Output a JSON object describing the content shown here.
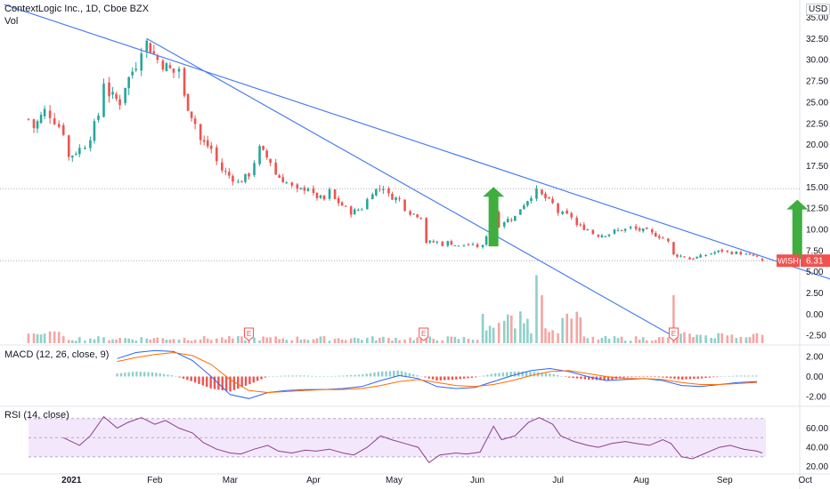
{
  "header": {
    "title": "ContextLogic Inc., 1D, Cboe BZX",
    "volume_label": "Vol",
    "currency": "USD"
  },
  "price_tag": {
    "symbol": "WISH",
    "value": "6.31",
    "color": "#ef5350"
  },
  "earnings_marker": "E",
  "colors": {
    "up": "#26a69a",
    "down": "#ef5350",
    "up_vol": "#8fd0c9",
    "down_vol": "#f4a6a4",
    "trendline": "#4a7ff0",
    "arrow": "#3fae3f",
    "macd": "#2962ff",
    "signal": "#ff6d00",
    "rsi": "#8e3e8e",
    "rsi_band": "#f3e8fb"
  },
  "panes": {
    "macd_label": "MACD (12, 26, close, 9)",
    "rsi_label": "RSI (14, close)"
  },
  "chart_data": [
    {
      "type": "candlestick",
      "title": "ContextLogic Inc., 1D, Cboe BZX",
      "ylabel": "USD",
      "ylim": [
        -3.0,
        36.0
      ],
      "yticks": [
        "35.00",
        "32.50",
        "30.00",
        "27.50",
        "25.00",
        "22.50",
        "20.00",
        "17.50",
        "15.00",
        "12.50",
        "10.00",
        "7.50",
        "5.00",
        "2.50",
        "0.00",
        "-2.50"
      ],
      "x_tick_labels": [
        "2021",
        "Feb",
        "Mar",
        "Apr",
        "May",
        "Jun",
        "Jul",
        "Aug",
        "Sep",
        "Oct"
      ],
      "last_price": 6.31,
      "close_path": [
        [
          "2020-12-16",
          23.0
        ],
        [
          "2020-12-18",
          22.0
        ],
        [
          "2020-12-22",
          24.0
        ],
        [
          "2020-12-24",
          23.5
        ],
        [
          "2020-12-29",
          21.5
        ],
        [
          "2020-12-31",
          18.5
        ],
        [
          "2021-01-04",
          19.5
        ],
        [
          "2021-01-06",
          20.0
        ],
        [
          "2021-01-08",
          21.0
        ],
        [
          "2021-01-11",
          23.5
        ],
        [
          "2021-01-13",
          27.5
        ],
        [
          "2021-01-15",
          26.0
        ],
        [
          "2021-01-19",
          25.0
        ],
        [
          "2021-01-21",
          27.0
        ],
        [
          "2021-01-25",
          29.5
        ],
        [
          "2021-01-27",
          31.5
        ],
        [
          "2021-01-29",
          32.0
        ],
        [
          "2021-02-02",
          30.0
        ],
        [
          "2021-02-04",
          29.5
        ],
        [
          "2021-02-08",
          28.5
        ],
        [
          "2021-02-10",
          29.0
        ],
        [
          "2021-02-12",
          25.5
        ],
        [
          "2021-02-16",
          22.5
        ],
        [
          "2021-02-18",
          20.5
        ],
        [
          "2021-02-22",
          19.5
        ],
        [
          "2021-02-24",
          18.0
        ],
        [
          "2021-02-26",
          17.0
        ],
        [
          "2021-03-02",
          16.0
        ],
        [
          "2021-03-04",
          15.5
        ],
        [
          "2021-03-08",
          16.5
        ],
        [
          "2021-03-10",
          18.0
        ],
        [
          "2021-03-12",
          19.5
        ],
        [
          "2021-03-16",
          18.0
        ],
        [
          "2021-03-18",
          16.5
        ],
        [
          "2021-03-22",
          15.5
        ],
        [
          "2021-03-24",
          15.0
        ],
        [
          "2021-03-26",
          14.5
        ],
        [
          "2021-03-30",
          15.0
        ],
        [
          "2021-04-01",
          14.0
        ],
        [
          "2021-04-05",
          13.5
        ],
        [
          "2021-04-07",
          14.5
        ],
        [
          "2021-04-09",
          13.5
        ],
        [
          "2021-04-13",
          12.5
        ],
        [
          "2021-04-15",
          12.0
        ],
        [
          "2021-04-19",
          12.5
        ],
        [
          "2021-04-21",
          13.5
        ],
        [
          "2021-04-23",
          14.5
        ],
        [
          "2021-04-27",
          15.0
        ],
        [
          "2021-04-29",
          14.0
        ],
        [
          "2021-05-03",
          13.5
        ],
        [
          "2021-05-05",
          12.5
        ],
        [
          "2021-05-07",
          12.0
        ],
        [
          "2021-05-11",
          11.5
        ],
        [
          "2021-05-13",
          8.5
        ],
        [
          "2021-05-17",
          8.5
        ],
        [
          "2021-05-19",
          8.2
        ],
        [
          "2021-05-21",
          8.5
        ],
        [
          "2021-05-25",
          8.0
        ],
        [
          "2021-05-27",
          8.2
        ],
        [
          "2021-06-01",
          8.0
        ],
        [
          "2021-06-03",
          8.0
        ],
        [
          "2021-06-07",
          12.0
        ],
        [
          "2021-06-09",
          10.5
        ],
        [
          "2021-06-11",
          11.0
        ],
        [
          "2021-06-15",
          11.5
        ],
        [
          "2021-06-17",
          12.5
        ],
        [
          "2021-06-21",
          14.0
        ],
        [
          "2021-06-23",
          14.5
        ],
        [
          "2021-06-25",
          14.0
        ],
        [
          "2021-06-29",
          13.0
        ],
        [
          "2021-07-01",
          12.0
        ],
        [
          "2021-07-06",
          11.5
        ],
        [
          "2021-07-08",
          10.5
        ],
        [
          "2021-07-12",
          10.0
        ],
        [
          "2021-07-14",
          9.5
        ],
        [
          "2021-07-16",
          9.3
        ],
        [
          "2021-07-20",
          9.5
        ],
        [
          "2021-07-22",
          9.8
        ],
        [
          "2021-07-26",
          10.0
        ],
        [
          "2021-07-28",
          10.2
        ],
        [
          "2021-07-30",
          10.0
        ],
        [
          "2021-08-03",
          9.8
        ],
        [
          "2021-08-05",
          9.5
        ],
        [
          "2021-08-09",
          9.0
        ],
        [
          "2021-08-11",
          8.5
        ],
        [
          "2021-08-13",
          7.0
        ],
        [
          "2021-08-17",
          6.8
        ],
        [
          "2021-08-19",
          6.5
        ],
        [
          "2021-08-23",
          6.8
        ],
        [
          "2021-08-25",
          7.0
        ],
        [
          "2021-08-27",
          7.2
        ],
        [
          "2021-08-31",
          7.5
        ],
        [
          "2021-09-02",
          7.3
        ],
        [
          "2021-09-07",
          7.2
        ],
        [
          "2021-09-09",
          7.0
        ],
        [
          "2021-09-13",
          6.8
        ],
        [
          "2021-09-15",
          6.31
        ]
      ],
      "trendlines": [
        {
          "from": [
            "2020-12-07",
            36.5
          ],
          "to": [
            "2021-10-23",
            2.8
          ]
        },
        {
          "from": [
            "2021-01-29",
            32.5
          ],
          "to": [
            "2021-08-14",
            -2.8
          ]
        }
      ],
      "up_arrows": [
        {
          "date": "2021-06-07",
          "from": 8.0,
          "to": 15.0
        },
        {
          "date": "2021-09-28",
          "from": 6.5,
          "to": 13.5
        }
      ],
      "earnings_dates": [
        "2021-03-08",
        "2021-05-12",
        "2021-08-13"
      ],
      "volume_spikes": [
        {
          "date": "2021-06-08",
          "relative": 0.66
        },
        {
          "date": "2021-06-10",
          "relative": 0.45
        },
        {
          "date": "2021-06-23",
          "relative": 0.85
        },
        {
          "date": "2021-06-25",
          "relative": 0.6
        },
        {
          "date": "2021-08-13",
          "relative": 0.6
        }
      ]
    },
    {
      "type": "line",
      "title": "MACD (12, 26, close, 9)",
      "ylim": [
        -2.8,
        2.8
      ],
      "yticks": [
        "2.00",
        "0.00",
        "-2.00"
      ],
      "series": [
        {
          "name": "MACD",
          "points": [
            [
              "2021-01-18",
              1.8
            ],
            [
              "2021-01-25",
              2.4
            ],
            [
              "2021-02-01",
              2.6
            ],
            [
              "2021-02-08",
              2.5
            ],
            [
              "2021-02-15",
              1.6
            ],
            [
              "2021-02-22",
              0.0
            ],
            [
              "2021-03-01",
              -1.8
            ],
            [
              "2021-03-08",
              -2.2
            ],
            [
              "2021-03-15",
              -1.6
            ],
            [
              "2021-03-22",
              -1.4
            ],
            [
              "2021-03-29",
              -1.3
            ],
            [
              "2021-04-05",
              -1.3
            ],
            [
              "2021-04-12",
              -1.2
            ],
            [
              "2021-04-19",
              -1.0
            ],
            [
              "2021-04-26",
              -0.4
            ],
            [
              "2021-05-03",
              0.1
            ],
            [
              "2021-05-10",
              -0.2
            ],
            [
              "2021-05-17",
              -1.0
            ],
            [
              "2021-05-24",
              -1.2
            ],
            [
              "2021-05-31",
              -1.1
            ],
            [
              "2021-06-07",
              -0.5
            ],
            [
              "2021-06-14",
              0.1
            ],
            [
              "2021-06-21",
              0.6
            ],
            [
              "2021-06-28",
              0.8
            ],
            [
              "2021-07-05",
              0.5
            ],
            [
              "2021-07-12",
              0.0
            ],
            [
              "2021-07-19",
              -0.4
            ],
            [
              "2021-07-26",
              -0.3
            ],
            [
              "2021-08-02",
              -0.2
            ],
            [
              "2021-08-09",
              -0.4
            ],
            [
              "2021-08-16",
              -0.9
            ],
            [
              "2021-08-23",
              -1.0
            ],
            [
              "2021-08-30",
              -0.8
            ],
            [
              "2021-09-06",
              -0.6
            ],
            [
              "2021-09-13",
              -0.5
            ]
          ]
        },
        {
          "name": "Signal",
          "points": [
            [
              "2021-01-18",
              1.5
            ],
            [
              "2021-01-25",
              1.9
            ],
            [
              "2021-02-01",
              2.2
            ],
            [
              "2021-02-08",
              2.4
            ],
            [
              "2021-02-15",
              2.1
            ],
            [
              "2021-02-22",
              1.2
            ],
            [
              "2021-03-01",
              -0.3
            ],
            [
              "2021-03-08",
              -1.4
            ],
            [
              "2021-03-15",
              -1.6
            ],
            [
              "2021-03-22",
              -1.5
            ],
            [
              "2021-03-29",
              -1.4
            ],
            [
              "2021-04-05",
              -1.3
            ],
            [
              "2021-04-12",
              -1.3
            ],
            [
              "2021-04-19",
              -1.2
            ],
            [
              "2021-04-26",
              -0.9
            ],
            [
              "2021-05-03",
              -0.5
            ],
            [
              "2021-05-10",
              -0.3
            ],
            [
              "2021-05-17",
              -0.6
            ],
            [
              "2021-05-24",
              -0.9
            ],
            [
              "2021-05-31",
              -1.0
            ],
            [
              "2021-06-07",
              -0.8
            ],
            [
              "2021-06-14",
              -0.4
            ],
            [
              "2021-06-21",
              0.1
            ],
            [
              "2021-06-28",
              0.5
            ],
            [
              "2021-07-05",
              0.6
            ],
            [
              "2021-07-12",
              0.3
            ],
            [
              "2021-07-19",
              0.0
            ],
            [
              "2021-07-26",
              -0.2
            ],
            [
              "2021-08-02",
              -0.2
            ],
            [
              "2021-08-09",
              -0.3
            ],
            [
              "2021-08-16",
              -0.6
            ],
            [
              "2021-08-23",
              -0.8
            ],
            [
              "2021-08-30",
              -0.8
            ],
            [
              "2021-09-06",
              -0.7
            ],
            [
              "2021-09-13",
              -0.6
            ]
          ]
        }
      ]
    },
    {
      "type": "line",
      "title": "RSI (14, close)",
      "ylim": [
        15,
        80
      ],
      "band": [
        30,
        70
      ],
      "yticks": [
        "60.00",
        "40.00",
        "20.00"
      ],
      "series": [
        {
          "name": "RSI",
          "points": [
            [
              "2020-12-29",
              50
            ],
            [
              "2021-01-04",
              42
            ],
            [
              "2021-01-08",
              52
            ],
            [
              "2021-01-13",
              72
            ],
            [
              "2021-01-18",
              60
            ],
            [
              "2021-01-22",
              66
            ],
            [
              "2021-01-27",
              71
            ],
            [
              "2021-02-01",
              64
            ],
            [
              "2021-02-05",
              68
            ],
            [
              "2021-02-10",
              60
            ],
            [
              "2021-02-15",
              55
            ],
            [
              "2021-02-19",
              45
            ],
            [
              "2021-02-24",
              38
            ],
            [
              "2021-03-01",
              34
            ],
            [
              "2021-03-05",
              33
            ],
            [
              "2021-03-10",
              38
            ],
            [
              "2021-03-15",
              42
            ],
            [
              "2021-03-19",
              36
            ],
            [
              "2021-03-24",
              34
            ],
            [
              "2021-03-29",
              37
            ],
            [
              "2021-04-02",
              36
            ],
            [
              "2021-04-07",
              38
            ],
            [
              "2021-04-12",
              34
            ],
            [
              "2021-04-16",
              32
            ],
            [
              "2021-04-21",
              40
            ],
            [
              "2021-04-26",
              52
            ],
            [
              "2021-04-30",
              48
            ],
            [
              "2021-05-05",
              44
            ],
            [
              "2021-05-10",
              40
            ],
            [
              "2021-05-14",
              24
            ],
            [
              "2021-05-18",
              32
            ],
            [
              "2021-05-24",
              34
            ],
            [
              "2021-05-28",
              33
            ],
            [
              "2021-06-02",
              35
            ],
            [
              "2021-06-07",
              62
            ],
            [
              "2021-06-10",
              48
            ],
            [
              "2021-06-15",
              52
            ],
            [
              "2021-06-20",
              66
            ],
            [
              "2021-06-24",
              71
            ],
            [
              "2021-06-29",
              64
            ],
            [
              "2021-07-02",
              52
            ],
            [
              "2021-07-07",
              46
            ],
            [
              "2021-07-12",
              42
            ],
            [
              "2021-07-16",
              40
            ],
            [
              "2021-07-21",
              44
            ],
            [
              "2021-07-26",
              46
            ],
            [
              "2021-07-30",
              44
            ],
            [
              "2021-08-04",
              42
            ],
            [
              "2021-08-09",
              48
            ],
            [
              "2021-08-12",
              44
            ],
            [
              "2021-08-16",
              30
            ],
            [
              "2021-08-20",
              28
            ],
            [
              "2021-08-25",
              34
            ],
            [
              "2021-08-30",
              40
            ],
            [
              "2021-09-03",
              42
            ],
            [
              "2021-09-08",
              38
            ],
            [
              "2021-09-13",
              36
            ],
            [
              "2021-09-15",
              34
            ]
          ]
        }
      ]
    }
  ]
}
